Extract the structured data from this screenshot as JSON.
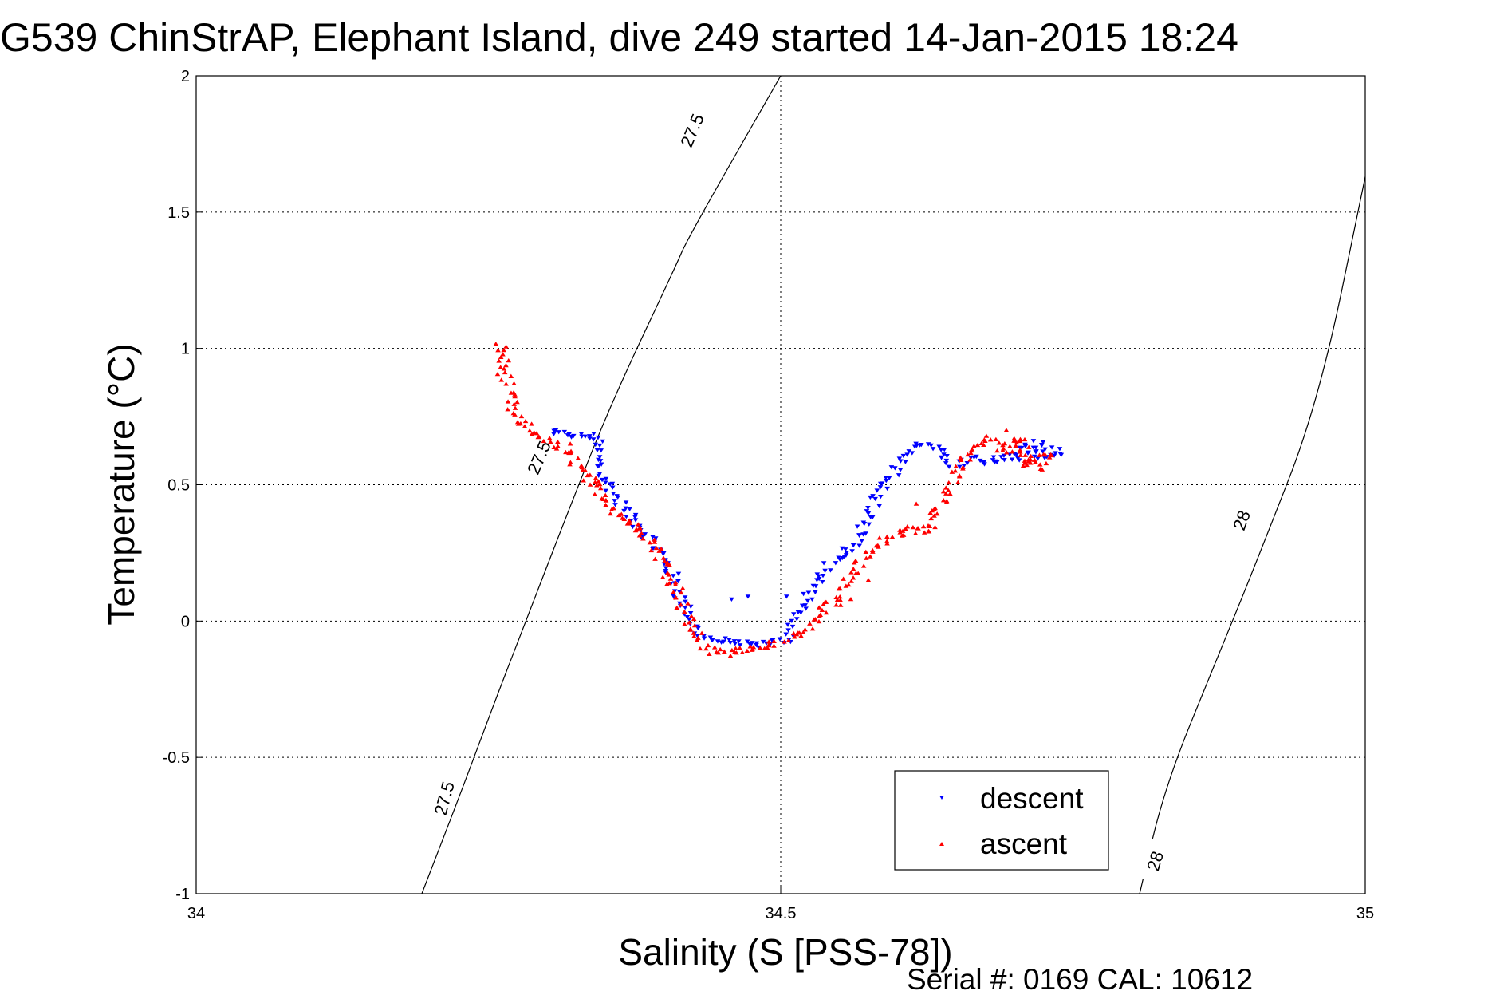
{
  "chart_data": {
    "type": "scatter",
    "title": "G539 ChinStrAP, Elephant Island, dive 249 started 14-Jan-2015 18:24",
    "xlabel": "Salinity (S [PSS-78])",
    "ylabel": "Temperature (°C)",
    "xlim": [
      34,
      35
    ],
    "ylim": [
      -1,
      2
    ],
    "x_ticks": [
      34,
      34.5,
      35
    ],
    "x_tick_labels": [
      "34",
      "34.5",
      "35"
    ],
    "y_ticks": [
      -1,
      -0.5,
      0,
      0.5,
      1,
      1.5,
      2
    ],
    "y_tick_labels": [
      "-1",
      "-0.5",
      "0",
      "0.5",
      "1",
      "1.5",
      "2"
    ],
    "grid": true,
    "legend_position": "bottom-right",
    "legend": [
      "descent",
      "ascent"
    ],
    "footnote": "Serial #: 0169 CAL: 10612",
    "contours": [
      {
        "level": "27.5",
        "points": [
          [
            34.193,
            -1.0
          ],
          [
            34.229,
            -0.6
          ],
          [
            34.255,
            -0.3
          ],
          [
            34.282,
            0.0
          ],
          [
            34.318,
            0.4
          ],
          [
            34.355,
            0.8
          ],
          [
            34.41,
            1.3
          ],
          [
            34.42,
            1.4
          ],
          [
            34.5,
            2.0
          ]
        ],
        "labels": [
          {
            "text": "27.5",
            "x": 34.424,
            "y": 1.8,
            "angle": -67
          },
          {
            "text": "27.5",
            "x": 34.293,
            "y": 0.6,
            "angle": -67
          },
          {
            "text": "27.5",
            "x": 34.212,
            "y": -0.65,
            "angle": -75
          }
        ]
      },
      {
        "level": "28",
        "points": [
          [
            34.807,
            -1.0
          ],
          [
            34.829,
            -0.6
          ],
          [
            34.877,
            -0.1
          ],
          [
            34.91,
            0.25
          ],
          [
            34.96,
            0.8
          ],
          [
            35.0,
            1.63
          ]
        ],
        "labels": [
          {
            "text": "28",
            "x": 34.894,
            "y": 0.37,
            "angle": -70
          },
          {
            "text": "28",
            "x": 34.82,
            "y": -0.88,
            "angle": -73
          }
        ]
      }
    ],
    "series": [
      {
        "name": "descent",
        "color": "#0000ff",
        "marker": "triangle-down",
        "path": [
          [
            34.304,
            0.69
          ],
          [
            34.31,
            0.69
          ],
          [
            34.32,
            0.68
          ],
          [
            34.34,
            0.68
          ],
          [
            34.342,
            0.66
          ],
          [
            34.343,
            0.6
          ],
          [
            34.346,
            0.55
          ],
          [
            34.36,
            0.45
          ],
          [
            34.37,
            0.39
          ],
          [
            34.385,
            0.32
          ],
          [
            34.397,
            0.25
          ],
          [
            34.407,
            0.17
          ],
          [
            34.413,
            0.1
          ],
          [
            34.42,
            0.04
          ],
          [
            34.427,
            -0.03
          ],
          [
            34.435,
            -0.06
          ],
          [
            34.445,
            -0.07
          ],
          [
            34.462,
            -0.08
          ],
          [
            34.478,
            -0.09
          ],
          [
            34.49,
            -0.08
          ],
          [
            34.506,
            -0.07
          ],
          [
            34.515,
            0.03
          ],
          [
            34.525,
            0.09
          ],
          [
            34.53,
            0.14
          ],
          [
            34.535,
            0.17
          ],
          [
            34.545,
            0.22
          ],
          [
            34.56,
            0.27
          ],
          [
            34.57,
            0.33
          ],
          [
            34.575,
            0.37
          ],
          [
            34.582,
            0.45
          ],
          [
            34.59,
            0.5
          ],
          [
            34.6,
            0.57
          ],
          [
            34.61,
            0.62
          ],
          [
            34.62,
            0.65
          ],
          [
            34.63,
            0.64
          ],
          [
            34.64,
            0.6
          ],
          [
            34.65,
            0.57
          ],
          [
            34.66,
            0.6
          ],
          [
            34.67,
            0.59
          ],
          [
            34.68,
            0.58
          ],
          [
            34.69,
            0.61
          ],
          [
            34.7,
            0.6
          ],
          [
            34.71,
            0.64
          ],
          [
            34.715,
            0.6
          ],
          [
            34.72,
            0.66
          ],
          [
            34.725,
            0.6
          ],
          [
            34.73,
            0.63
          ],
          [
            34.74,
            0.61
          ]
        ],
        "scatter": [
          0.006,
          0.01
        ],
        "outliers": [
          [
            34.472,
            0.09
          ],
          [
            34.505,
            0.09
          ],
          [
            34.382,
            0.31
          ],
          [
            34.458,
            0.08
          ]
        ]
      },
      {
        "name": "ascent",
        "color": "#ff0000",
        "marker": "triangle-up",
        "path": [
          [
            34.26,
            1.02
          ],
          [
            34.262,
            0.95
          ],
          [
            34.265,
            0.88
          ],
          [
            34.268,
            0.82
          ],
          [
            34.271,
            0.76
          ],
          [
            34.276,
            0.73
          ],
          [
            34.322,
            0.6
          ],
          [
            34.33,
            0.55
          ],
          [
            34.35,
            0.45
          ],
          [
            34.36,
            0.4
          ],
          [
            34.375,
            0.35
          ],
          [
            34.39,
            0.3
          ],
          [
            34.397,
            0.24
          ],
          [
            34.405,
            0.17
          ],
          [
            34.412,
            0.12
          ],
          [
            34.417,
            0.05
          ],
          [
            34.422,
            -0.01
          ],
          [
            34.428,
            -0.05
          ],
          [
            34.435,
            -0.09
          ],
          [
            34.44,
            -0.11
          ],
          [
            34.45,
            -0.12
          ],
          [
            34.462,
            -0.11
          ],
          [
            34.477,
            -0.1
          ],
          [
            34.49,
            -0.09
          ],
          [
            34.5,
            -0.08
          ],
          [
            34.512,
            -0.05
          ],
          [
            34.522,
            -0.02
          ],
          [
            34.53,
            0.01
          ],
          [
            34.54,
            0.05
          ],
          [
            34.55,
            0.08
          ],
          [
            34.56,
            0.16
          ],
          [
            34.57,
            0.22
          ],
          [
            34.58,
            0.27
          ],
          [
            34.59,
            0.3
          ],
          [
            34.6,
            0.31
          ],
          [
            34.61,
            0.35
          ],
          [
            34.62,
            0.32
          ],
          [
            34.63,
            0.35
          ],
          [
            34.64,
            0.45
          ],
          [
            34.65,
            0.55
          ],
          [
            34.66,
            0.62
          ],
          [
            34.67,
            0.65
          ],
          [
            34.68,
            0.67
          ],
          [
            34.69,
            0.63
          ],
          [
            34.7,
            0.62
          ],
          [
            34.705,
            0.68
          ],
          [
            34.71,
            0.57
          ],
          [
            34.715,
            0.6
          ],
          [
            34.72,
            0.56
          ],
          [
            34.725,
            0.62
          ],
          [
            34.73,
            0.6
          ]
        ],
        "scatter": [
          0.006,
          0.012
        ],
        "outliers": [
          [
            34.32,
            0.65
          ],
          [
            34.337,
            0.5
          ],
          [
            34.56,
            0.08
          ],
          [
            34.538,
            0.07
          ],
          [
            34.575,
            0.15
          ],
          [
            34.616,
            0.43
          ],
          [
            34.693,
            0.7
          ]
        ]
      }
    ]
  }
}
